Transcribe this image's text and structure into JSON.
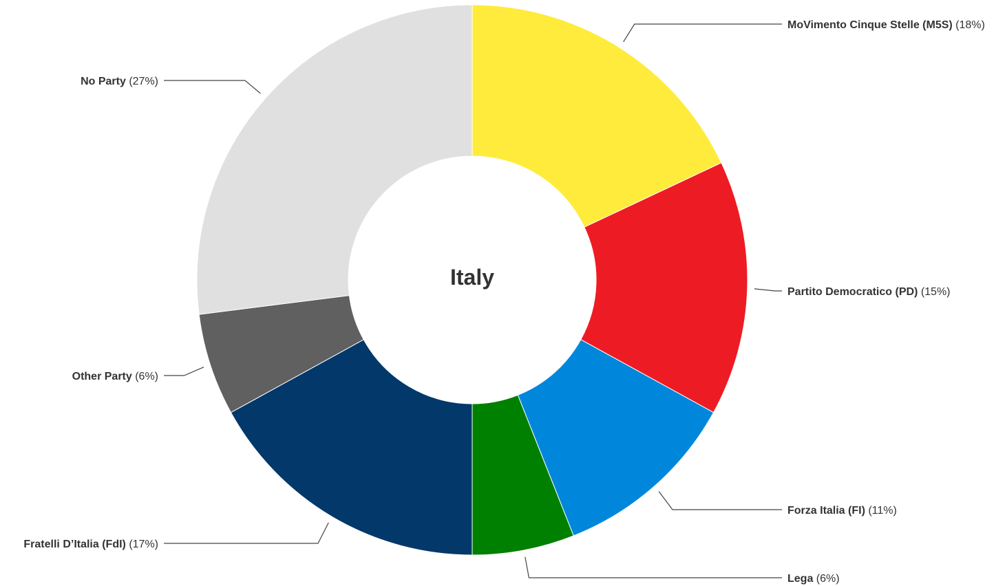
{
  "chart_data": {
    "type": "pie",
    "variant": "donut",
    "center_label": "Italy",
    "slices": [
      {
        "name": "MoVimento Cinque Stelle (M5S)",
        "pct_label": "(18%)",
        "value": 18,
        "color": "#FFEB3B",
        "side": "right"
      },
      {
        "name": "Partito Democratico (PD)",
        "pct_label": "(15%)",
        "value": 15,
        "color": "#ED1C24",
        "side": "right"
      },
      {
        "name": "Forza Italia (FI)",
        "pct_label": "(11%)",
        "value": 11,
        "color": "#0087DC",
        "side": "right"
      },
      {
        "name": "Lega",
        "pct_label": "(6%)",
        "value": 6,
        "color": "#008000",
        "side": "right"
      },
      {
        "name": "Fratelli D’Italia (FdI)",
        "pct_label": "(17%)",
        "value": 17,
        "color": "#03386A",
        "side": "left"
      },
      {
        "name": "Other Party",
        "pct_label": "(6%)",
        "value": 6,
        "color": "#606060",
        "side": "left"
      },
      {
        "name": "No Party",
        "pct_label": "(27%)",
        "value": 27,
        "color": "#E0E0E0",
        "side": "left"
      }
    ]
  }
}
